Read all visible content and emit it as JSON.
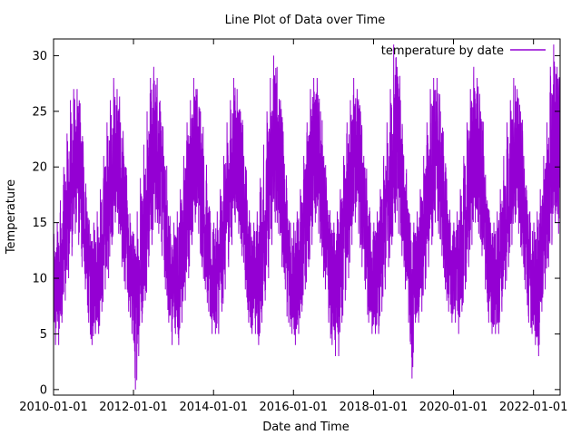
{
  "chart_data": {
    "type": "line",
    "title": "Line Plot of Data over Time",
    "xlabel": "Date and Time",
    "ylabel": "Temperature",
    "x_range": [
      "2010-01-01",
      "2022-09-01"
    ],
    "ylim": [
      -0.5,
      31.5
    ],
    "x_ticks": [
      "2010-01-01",
      "2012-01-01",
      "2014-01-01",
      "2016-01-01",
      "2018-01-01",
      "2020-01-01",
      "2022-01-01"
    ],
    "y_ticks": [
      0,
      5,
      10,
      15,
      20,
      25,
      30
    ],
    "grid": false,
    "legend_position": "top-right",
    "series": [
      {
        "name": "temperature by date",
        "color": "#9400d3",
        "resolution": "monthly",
        "x": [
          "2010-01",
          "2010-02",
          "2010-03",
          "2010-04",
          "2010-05",
          "2010-06",
          "2010-07",
          "2010-08",
          "2010-09",
          "2010-10",
          "2010-11",
          "2010-12",
          "2011-01",
          "2011-02",
          "2011-03",
          "2011-04",
          "2011-05",
          "2011-06",
          "2011-07",
          "2011-08",
          "2011-09",
          "2011-10",
          "2011-11",
          "2011-12",
          "2012-01",
          "2012-02",
          "2012-03",
          "2012-04",
          "2012-05",
          "2012-06",
          "2012-07",
          "2012-08",
          "2012-09",
          "2012-10",
          "2012-11",
          "2012-12",
          "2013-01",
          "2013-02",
          "2013-03",
          "2013-04",
          "2013-05",
          "2013-06",
          "2013-07",
          "2013-08",
          "2013-09",
          "2013-10",
          "2013-11",
          "2013-12",
          "2014-01",
          "2014-02",
          "2014-03",
          "2014-04",
          "2014-05",
          "2014-06",
          "2014-07",
          "2014-08",
          "2014-09",
          "2014-10",
          "2014-11",
          "2014-12",
          "2015-01",
          "2015-02",
          "2015-03",
          "2015-04",
          "2015-05",
          "2015-06",
          "2015-07",
          "2015-08",
          "2015-09",
          "2015-10",
          "2015-11",
          "2015-12",
          "2016-01",
          "2016-02",
          "2016-03",
          "2016-04",
          "2016-05",
          "2016-06",
          "2016-07",
          "2016-08",
          "2016-09",
          "2016-10",
          "2016-11",
          "2016-12",
          "2017-01",
          "2017-02",
          "2017-03",
          "2017-04",
          "2017-05",
          "2017-06",
          "2017-07",
          "2017-08",
          "2017-09",
          "2017-10",
          "2017-11",
          "2017-12",
          "2018-01",
          "2018-02",
          "2018-03",
          "2018-04",
          "2018-05",
          "2018-06",
          "2018-07",
          "2018-08",
          "2018-09",
          "2018-10",
          "2018-11",
          "2018-12",
          "2019-01",
          "2019-02",
          "2019-03",
          "2019-04",
          "2019-05",
          "2019-06",
          "2019-07",
          "2019-08",
          "2019-09",
          "2019-10",
          "2019-11",
          "2019-12",
          "2020-01",
          "2020-02",
          "2020-03",
          "2020-04",
          "2020-05",
          "2020-06",
          "2020-07",
          "2020-08",
          "2020-09",
          "2020-10",
          "2020-11",
          "2020-12",
          "2021-01",
          "2021-02",
          "2021-03",
          "2021-04",
          "2021-05",
          "2021-06",
          "2021-07",
          "2021-08",
          "2021-09",
          "2021-10",
          "2021-11",
          "2021-12",
          "2022-01",
          "2022-02",
          "2022-03",
          "2022-04",
          "2022-05",
          "2022-06",
          "2022-07",
          "2022-08"
        ],
        "min": [
          4,
          4,
          6,
          8,
          10,
          12,
          14,
          13,
          11,
          9,
          6,
          4,
          5,
          5,
          7,
          9,
          10,
          13,
          15,
          14,
          11,
          9,
          7,
          5,
          0,
          3,
          6,
          8,
          11,
          13,
          15,
          14,
          12,
          9,
          6,
          4,
          5,
          4,
          6,
          8,
          10,
          13,
          15,
          14,
          11,
          9,
          7,
          5,
          5,
          5,
          7,
          9,
          11,
          13,
          15,
          14,
          12,
          9,
          6,
          5,
          5,
          4,
          6,
          8,
          10,
          13,
          15,
          14,
          11,
          9,
          6,
          5,
          4,
          5,
          7,
          9,
          11,
          13,
          15,
          14,
          12,
          9,
          6,
          4,
          3,
          3,
          6,
          8,
          10,
          13,
          15,
          14,
          11,
          9,
          6,
          5,
          5,
          5,
          7,
          9,
          11,
          13,
          15,
          14,
          12,
          9,
          6,
          1,
          6,
          6,
          7,
          9,
          11,
          13,
          15,
          14,
          12,
          9,
          7,
          6,
          6,
          5,
          7,
          9,
          11,
          13,
          15,
          14,
          12,
          9,
          6,
          5,
          5,
          5,
          7,
          9,
          11,
          13,
          15,
          14,
          12,
          9,
          6,
          5,
          4,
          3,
          7,
          9,
          11,
          13,
          15,
          14
        ],
        "max": [
          14,
          15,
          17,
          20,
          23,
          26,
          27,
          27,
          24,
          20,
          16,
          14,
          15,
          16,
          18,
          21,
          24,
          26,
          28,
          27,
          24,
          21,
          17,
          15,
          14,
          16,
          19,
          22,
          25,
          28,
          29,
          28,
          25,
          21,
          17,
          14,
          15,
          16,
          18,
          21,
          24,
          26,
          28,
          27,
          25,
          21,
          17,
          15,
          15,
          16,
          18,
          21,
          24,
          26,
          28,
          27,
          25,
          21,
          17,
          15,
          15,
          16,
          19,
          22,
          25,
          28,
          30,
          29,
          26,
          21,
          17,
          15,
          15,
          16,
          18,
          21,
          24,
          27,
          28,
          28,
          25,
          21,
          17,
          15,
          15,
          16,
          18,
          21,
          24,
          26,
          28,
          27,
          25,
          21,
          17,
          15,
          15,
          16,
          18,
          21,
          24,
          27,
          31,
          29,
          26,
          21,
          17,
          15,
          15,
          16,
          18,
          21,
          24,
          27,
          28,
          28,
          25,
          21,
          17,
          15,
          15,
          16,
          18,
          21,
          24,
          27,
          29,
          28,
          25,
          21,
          17,
          15,
          15,
          16,
          18,
          21,
          24,
          26,
          28,
          27,
          25,
          21,
          17,
          15,
          15,
          16,
          18,
          21,
          24,
          29,
          31,
          29
        ]
      }
    ]
  }
}
